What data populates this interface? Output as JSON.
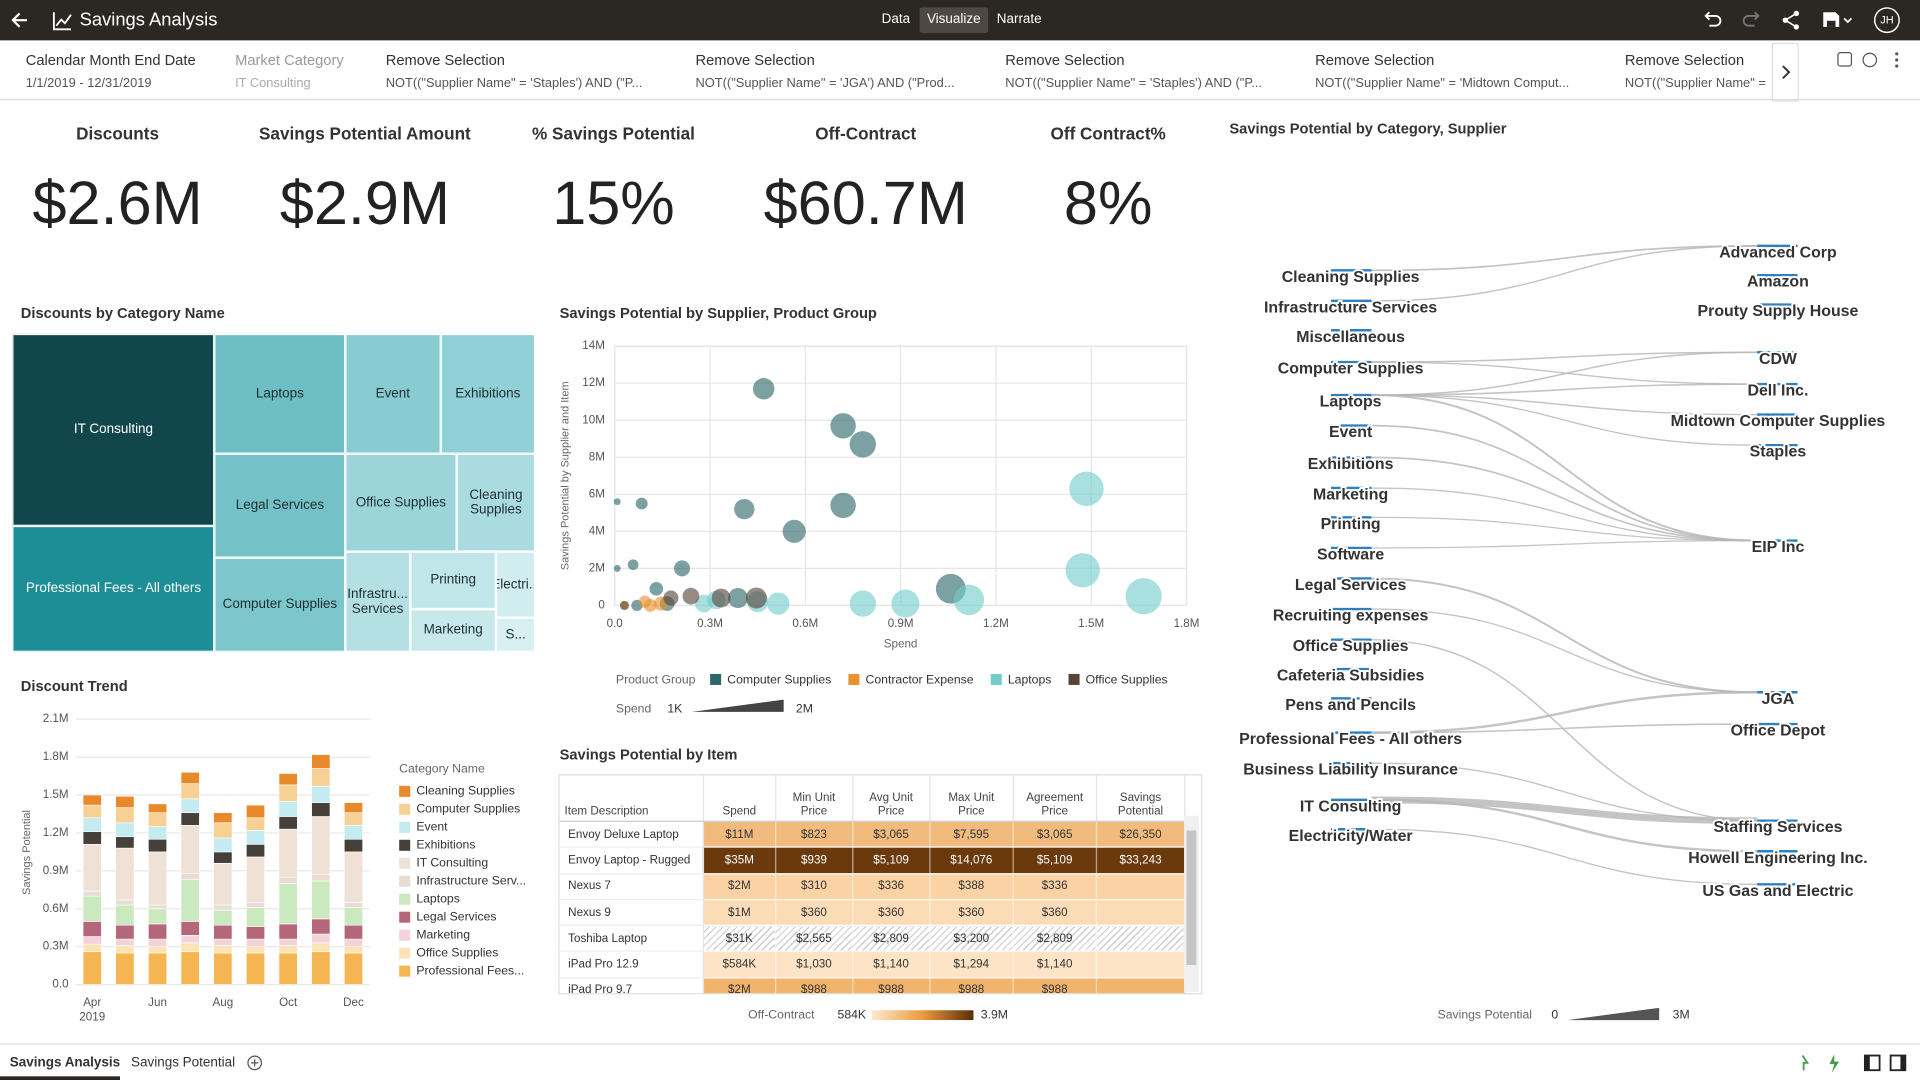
{
  "header": {
    "title": "Savings Analysis",
    "tabs": [
      "Data",
      "Visualize",
      "Narrate"
    ],
    "avatar": "JH"
  },
  "filters": [
    {
      "label": "Calendar Month End Date",
      "value": "1/1/2019 - 12/31/2019"
    },
    {
      "label": "Market Category",
      "value": "IT Consulting"
    },
    {
      "label": "Remove Selection",
      "value": "NOT((\"Supplier Name\" = 'Staples') AND (\"P..."
    },
    {
      "label": "Remove Selection",
      "value": "NOT((\"Supplier Name\" = 'JGA') AND (\"Prod..."
    },
    {
      "label": "Remove Selection",
      "value": "NOT((\"Supplier Name\" = 'Staples') AND (\"P..."
    },
    {
      "label": "Remove Selection",
      "value": "NOT((\"Supplier Name\" = 'Midtown Comput..."
    },
    {
      "label": "Remove Selection",
      "value": "NOT((\"Supplier Name\" = 'C"
    }
  ],
  "kpis": [
    {
      "title": "Discounts",
      "value": "$2.6M"
    },
    {
      "title": "Savings Potential Amount",
      "value": "$2.9M"
    },
    {
      "title": "% Savings Potential",
      "value": "15%"
    },
    {
      "title": "Off-Contract",
      "value": "$60.7M"
    },
    {
      "title": "Off Contract%",
      "value": "8%"
    }
  ],
  "chart_data": [
    {
      "type": "treemap",
      "title": "Discounts by Category Name",
      "categories": [
        "IT Consulting",
        "Professional Fees - All others",
        "Laptops",
        "Legal Services",
        "Computer Supplies",
        "Event",
        "Exhibitions",
        "Office Supplies",
        "Cleaning Supplies",
        "Infrastru... Services",
        "Printing",
        "Marketing",
        "Electri...",
        "S..."
      ],
      "values": [
        608000,
        399000,
        244000,
        212000,
        192000,
        179000,
        177000,
        171000,
        120000,
        102000,
        77000,
        58000,
        40000,
        21000
      ],
      "colors": [
        "#11474c",
        "#1d8e95",
        "#6dbec5",
        "#74c2c8",
        "#7cc6cc",
        "#88ccd2",
        "#90d0d6",
        "#9bd5da",
        "#a9dbe0",
        "#b4e0e4",
        "#c1e6e9",
        "#c8e9ec",
        "#d1edef",
        "#d9f0f2"
      ]
    },
    {
      "type": "scatter",
      "title": "Savings Potential by Supplier, Product Group",
      "x_label": "Spend",
      "y_label": "Savings Potential by Supplier and Item",
      "xlim": [
        0,
        1800000
      ],
      "ylim": [
        0,
        14000000
      ],
      "grid": true,
      "xticks": [
        {
          "value": 0,
          "label": "0.0"
        },
        {
          "value": 300000,
          "label": "0.3M"
        },
        {
          "value": 600000,
          "label": "0.6M"
        },
        {
          "value": 900000,
          "label": "0.9M"
        },
        {
          "value": 1200000,
          "label": "1.2M"
        },
        {
          "value": 1500000,
          "label": "1.5M"
        },
        {
          "value": 1800000,
          "label": "1.8M"
        }
      ],
      "yticks": [
        0,
        {
          "value": 2000000,
          "label": "2M"
        },
        {
          "value": 4000000,
          "label": "4M"
        },
        {
          "value": 6000000,
          "label": "6M"
        },
        {
          "value": 8000000,
          "label": "8M"
        },
        {
          "value": 10000000,
          "label": "10M"
        },
        {
          "value": 12000000,
          "label": "12M"
        },
        {
          "value": 14000000,
          "label": "14M"
        }
      ],
      "legend_title": "Product Group",
      "series": [
        {
          "name": "Computer Supplies",
          "color": "#2d666b",
          "x": [
            469000,
            719000,
            781000,
            719000,
            565000,
            408000,
            85000,
            8000,
            58000,
            8000,
            212000,
            131000,
            1058000,
            388000,
            165000,
            70000
          ],
          "values": [
            11700000,
            9700000,
            8700000,
            5400000,
            4000000,
            5200000,
            5500000,
            5600000,
            2200000,
            2000000,
            2000000,
            900000,
            900000,
            400000,
            100000,
            0
          ]
        },
        {
          "name": "Contractor Expense",
          "color": "#e8922e",
          "x": [
            146000,
            112000,
            95000,
            30000
          ],
          "values": [
            100000,
            0,
            200000,
            0
          ]
        },
        {
          "name": "Laptops",
          "color": "#72cccc",
          "x": [
            1485000,
            1473000,
            1665000,
            1115000,
            915000,
            781000,
            515000,
            281000,
            450000,
            320000
          ],
          "values": [
            6300000,
            1900000,
            500000,
            300000,
            100000,
            100000,
            100000,
            100000,
            200000,
            300000
          ]
        },
        {
          "name": "Office Supplies",
          "color": "#56433a",
          "x": [
            446000,
            31000,
            177000,
            335000,
            240000
          ],
          "values": [
            400000,
            0,
            400000,
            400000,
            500000
          ]
        }
      ],
      "size_legend": {
        "title": "Spend",
        "min": {
          "value": 1000,
          "label": "1K"
        },
        "max": {
          "value": 2000000,
          "label": "2M"
        }
      }
    },
    {
      "type": "stacked-bar",
      "title": "Discount Trend",
      "y_label": "Savings Potential",
      "categories": [
        "Apr",
        null,
        "Jun",
        null,
        "Aug",
        null,
        "Oct",
        null,
        "Dec"
      ],
      "x_sublabel": "2019",
      "ylim": [
        0,
        2100000
      ],
      "grid": true,
      "yticks": [
        {
          "value": 0,
          "label": "0.0"
        },
        {
          "value": 300000,
          "label": "0.3M"
        },
        {
          "value": 600000,
          "label": "0.6M"
        },
        {
          "value": 900000,
          "label": "0.9M"
        },
        {
          "value": 1200000,
          "label": "1.2M"
        },
        {
          "value": 1500000,
          "label": "1.5M"
        },
        {
          "value": 1800000,
          "label": "1.8M"
        },
        {
          "value": 2100000,
          "label": "2.1M"
        }
      ],
      "legend_title": "Category Name",
      "series": [
        {
          "name": "Cleaning Supplies",
          "color": "#e8892b",
          "values": [
            80000,
            90000,
            70000,
            90000,
            80000,
            100000,
            90000,
            110000,
            80000
          ]
        },
        {
          "name": "Computer Supplies",
          "color": "#f7d094",
          "values": [
            100000,
            120000,
            110000,
            120000,
            120000,
            100000,
            130000,
            140000,
            100000
          ]
        },
        {
          "name": "Event",
          "color": "#c4ebef",
          "values": [
            110000,
            110000,
            100000,
            110000,
            110000,
            110000,
            120000,
            130000,
            110000
          ]
        },
        {
          "name": "Exhibitions",
          "color": "#46403b",
          "values": [
            100000,
            90000,
            100000,
            100000,
            90000,
            100000,
            100000,
            110000,
            100000
          ]
        },
        {
          "name": "IT Consulting",
          "color": "#efe1d5",
          "values": [
            370000,
            410000,
            420000,
            380000,
            330000,
            360000,
            380000,
            460000,
            400000
          ]
        },
        {
          "name": "Infrastructure Serv...",
          "color": "#e6ddd5",
          "values": [
            40000,
            40000,
            30000,
            50000,
            40000,
            40000,
            50000,
            50000,
            40000
          ]
        },
        {
          "name": "Laptops",
          "color": "#cbe9bf",
          "values": [
            200000,
            160000,
            120000,
            330000,
            120000,
            150000,
            320000,
            300000,
            140000
          ]
        },
        {
          "name": "Legal Services",
          "color": "#b4677a",
          "values": [
            120000,
            110000,
            120000,
            110000,
            110000,
            100000,
            120000,
            120000,
            110000
          ]
        },
        {
          "name": "Marketing",
          "color": "#f4d3da",
          "values": [
            60000,
            50000,
            60000,
            60000,
            50000,
            60000,
            50000,
            70000,
            60000
          ]
        },
        {
          "name": "Office Supplies",
          "color": "#fbe3b4",
          "values": [
            60000,
            60000,
            50000,
            70000,
            60000,
            50000,
            60000,
            70000,
            50000
          ]
        },
        {
          "name": "Professional Fees...",
          "color": "#f4b552",
          "values": [
            260000,
            250000,
            250000,
            260000,
            250000,
            250000,
            250000,
            260000,
            250000
          ]
        }
      ]
    },
    {
      "type": "sankey",
      "title": "Savings Potential by Category, Supplier",
      "sources": [
        "Cleaning Supplies",
        "Infrastructure Services",
        "Miscellaneous",
        "Computer Supplies",
        "Laptops",
        "Event",
        "Exhibitions",
        "Marketing",
        "Printing",
        "Software",
        "Legal Services",
        "Recruiting expenses",
        "Office Supplies",
        "Cafeteria Subsidies",
        "Pens and Pencils",
        "Professional Fees - All others",
        "Business Liability Insurance",
        "IT Consulting",
        "Electricity/Water"
      ],
      "targets": [
        "Advanced Corp",
        "Amazon",
        "Prouty Supply House",
        "CDW",
        "Dell Inc.",
        "Midtown Computer Supplies",
        "Staples",
        "EIP Inc",
        "JGA",
        "Office Depot",
        "Staffing Services",
        "Howell Engineering Inc.",
        "US Gas and Electric"
      ],
      "links": [
        {
          "source": 0,
          "target": 0,
          "value": 150000
        },
        {
          "source": 1,
          "target": 0,
          "value": 100000
        },
        {
          "source": 3,
          "target": 3,
          "value": 120000
        },
        {
          "source": 3,
          "target": 4,
          "value": 80000
        },
        {
          "source": 4,
          "target": 3,
          "value": 100000
        },
        {
          "source": 4,
          "target": 4,
          "value": 120000
        },
        {
          "source": 4,
          "target": 5,
          "value": 90000
        },
        {
          "source": 4,
          "target": 6,
          "value": 80000
        },
        {
          "source": 4,
          "target": 7,
          "value": 200000
        },
        {
          "source": 5,
          "target": 7,
          "value": 150000
        },
        {
          "source": 6,
          "target": 7,
          "value": 150000
        },
        {
          "source": 7,
          "target": 7,
          "value": 80000
        },
        {
          "source": 8,
          "target": 7,
          "value": 60000
        },
        {
          "source": 9,
          "target": 7,
          "value": 60000
        },
        {
          "source": 10,
          "target": 8,
          "value": 200000
        },
        {
          "source": 11,
          "target": 8,
          "value": 80000
        },
        {
          "source": 12,
          "target": 10,
          "value": 100000
        },
        {
          "source": 15,
          "target": 8,
          "value": 300000
        },
        {
          "source": 15,
          "target": 9,
          "value": 120000
        },
        {
          "source": 16,
          "target": 10,
          "value": 80000
        },
        {
          "source": 17,
          "target": 10,
          "value": 1200000
        },
        {
          "source": 17,
          "target": 11,
          "value": 300000
        },
        {
          "source": 18,
          "target": 12,
          "value": 80000
        }
      ],
      "width_legend": {
        "title": "Savings Potential",
        "min": 0,
        "max": {
          "value": 3000000,
          "label": "3M"
        }
      }
    }
  ],
  "table": {
    "title": "Savings Potential by Item",
    "columns": [
      "Item Description",
      "Spend",
      "Min Unit Price",
      "Avg Unit Price",
      "Max Unit Price",
      "Agreement Price",
      "Savings Potential"
    ],
    "rows": [
      [
        "Envoy Deluxe Laptop",
        "$11M",
        "$823",
        "$3,065",
        "$7,595",
        "$3,065",
        "$26,350"
      ],
      [
        "Envoy Laptop - Rugged",
        "$35M",
        "$939",
        "$5,109",
        "$14,076",
        "$5,109",
        "$33,243"
      ],
      [
        "Nexus 7",
        "$2M",
        "$310",
        "$336",
        "$388",
        "$336",
        null
      ],
      [
        "Nexus 9",
        "$1M",
        "$360",
        "$360",
        "$360",
        "$360",
        null
      ],
      [
        "Toshiba Laptop",
        "$31K",
        "$2,565",
        "$2,809",
        "$3,200",
        "$2,809",
        null
      ],
      [
        "iPad Pro 12.9",
        "$584K",
        "$1,030",
        "$1,140",
        "$1,294",
        "$1,140",
        null
      ],
      [
        "iPad Pro 9.7",
        "$2M",
        "$988",
        "$988",
        "$988",
        "$988",
        null
      ]
    ],
    "row_colors": [
      "#f0bb7c",
      "#6b3a0c",
      "#fbd2a4",
      "#fcdcb6",
      null,
      "#fde4c6",
      "#f2b36d"
    ],
    "color_legend": {
      "title": "Off-Contract",
      "min": "584K",
      "max": "3.9M"
    }
  },
  "footer_tabs": [
    "Savings Analysis",
    "Savings Potential"
  ]
}
